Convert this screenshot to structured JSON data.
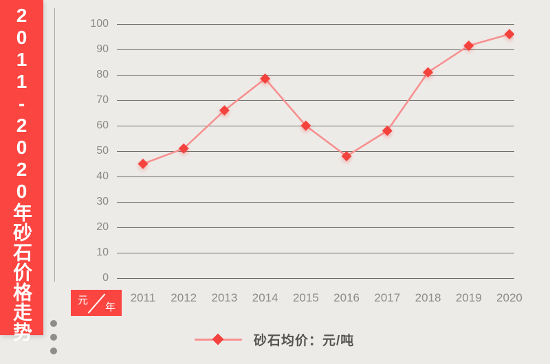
{
  "banner": {
    "title": "2011-2020年砂石价格走势",
    "bg_color": "#fb4541",
    "text_color": "#ffffff"
  },
  "axis_unit": {
    "numerator": "元",
    "denominator": "年"
  },
  "legend": {
    "label": "砂石均价：元/吨"
  },
  "colors": {
    "background": "#edebe8",
    "accent_red": "#fb4541",
    "line": "#f79090",
    "marker": "#f4423e",
    "gridline": "#6e6c67",
    "tick_text": "#8d8b86",
    "legend_text": "#565450"
  },
  "chart_data": {
    "type": "line",
    "title": "2011-2020年砂石价格走势",
    "categories": [
      "2011",
      "2012",
      "2013",
      "2014",
      "2015",
      "2016",
      "2017",
      "2018",
      "2019",
      "2020"
    ],
    "series": [
      {
        "name": "砂石均价：元/吨",
        "values": [
          45,
          51,
          66,
          78.5,
          60,
          48,
          58,
          81,
          91.5,
          96
        ]
      }
    ],
    "xlabel": "年",
    "ylabel": "元",
    "ylim": [
      0,
      100
    ],
    "y_ticks": [
      0,
      10,
      20,
      30,
      40,
      50,
      60,
      70,
      80,
      90,
      100
    ],
    "grid": true,
    "legend_position": "bottom",
    "marker_shape": "diamond"
  }
}
